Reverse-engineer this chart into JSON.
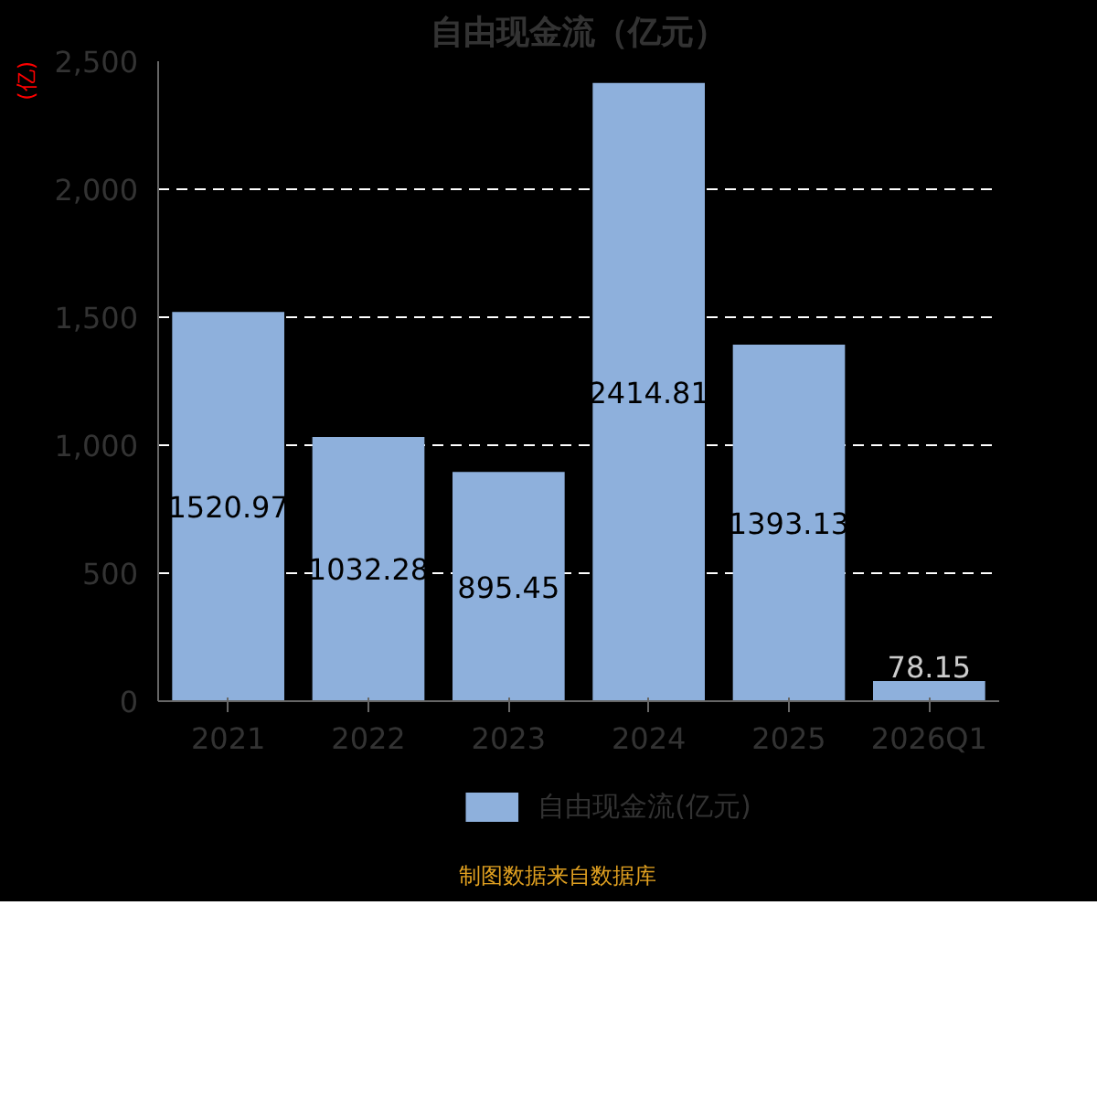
{
  "chart_data": {
    "type": "bar",
    "title": "自由现金流（亿元）",
    "ylabel": "(亿)",
    "categories": [
      "2021",
      "2022",
      "2023",
      "2024",
      "2025",
      "2026Q1"
    ],
    "series": [
      {
        "name": "自由现金流(亿元)",
        "color": "#8eb0dc",
        "values": [
          1520.97,
          1032.28,
          895.45,
          2414.81,
          1393.13,
          78.15
        ]
      }
    ],
    "ylim": [
      0,
      2500
    ],
    "yticks": [
      0,
      {
        "value": 500,
        "label": "500"
      },
      {
        "value": 1000,
        "label": "1,000"
      },
      {
        "value": 1500,
        "label": "1,500"
      },
      {
        "value": 2000,
        "label": "2,000"
      },
      {
        "value": 2500,
        "label": "2,500"
      }
    ],
    "grid": "y",
    "legend": "bottom",
    "data_labels": true,
    "annotations": [
      "制图数据来自数据库"
    ]
  }
}
